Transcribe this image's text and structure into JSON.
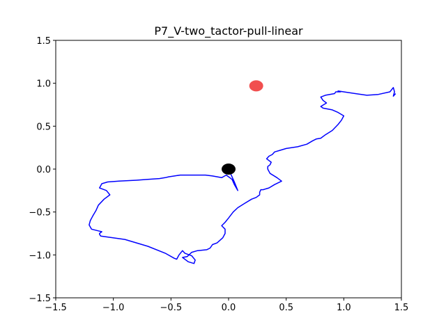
{
  "chart_data": {
    "type": "line",
    "title": "P7_V-two_tactor-pull-linear",
    "xlabel": "",
    "ylabel": "",
    "xlim": [
      -1.5,
      1.5
    ],
    "ylim": [
      -1.5,
      1.5
    ],
    "x_ticks": [
      "−1.5",
      "−1.0",
      "−0.5",
      "0.0",
      "0.5",
      "1.0",
      "1.5"
    ],
    "y_ticks": [
      "−1.5",
      "−1.0",
      "−0.5",
      "0.0",
      "0.5",
      "1.0",
      "1.5"
    ],
    "grid": false,
    "colors": {
      "path": "#0000ff",
      "target": "#f03c3c",
      "start": "#000000"
    },
    "markers": [
      {
        "name": "target",
        "x": 0.24,
        "y": 0.97,
        "color": "#f03c3c"
      },
      {
        "name": "start",
        "x": 0.0,
        "y": 0.0,
        "color": "#000000"
      }
    ],
    "series": [
      {
        "x": [
          0.0,
          0.05,
          0.08,
          0.05,
          0.03,
          -0.02,
          -0.06,
          -0.14,
          -0.2,
          -0.24,
          -0.28,
          -0.32,
          -0.42,
          -0.47,
          -0.52,
          -0.55,
          -0.6,
          -0.7,
          -0.8,
          -0.95,
          -1.05,
          -1.1,
          -1.12,
          -1.06,
          -1.03,
          -1.08,
          -1.13,
          -1.15,
          -1.18,
          -1.2,
          -1.21,
          -1.19,
          -1.13,
          -1.1,
          -1.12,
          -1.12,
          -1.11,
          -0.9,
          -0.7,
          -0.55,
          -0.47,
          -0.45,
          -0.43,
          -0.4,
          -0.38,
          -0.32,
          -0.29,
          -0.3,
          -0.35,
          -0.4,
          -0.36,
          -0.32,
          -0.27,
          -0.19,
          -0.16,
          -0.14,
          -0.1,
          -0.05,
          -0.03,
          -0.03,
          -0.06,
          -0.03,
          0.0,
          0.04,
          0.08,
          0.14,
          0.2,
          0.24,
          0.27,
          0.27,
          0.28,
          0.3,
          0.35,
          0.4,
          0.46,
          0.42,
          0.36,
          0.34,
          0.34,
          0.36,
          0.37,
          0.33,
          0.35,
          0.38,
          0.4,
          0.45,
          0.5,
          0.6,
          0.68,
          0.73,
          0.76,
          0.8,
          0.84,
          0.9,
          0.95,
          0.98,
          1.0,
          0.95,
          0.9,
          0.82,
          0.8,
          0.85,
          0.82,
          0.8,
          0.84,
          0.92,
          0.93,
          0.97,
          0.95,
          1.0,
          1.1,
          1.2,
          1.3,
          1.4,
          1.43,
          1.44,
          1.43,
          1.45
        ],
        "y": [
          0.0,
          -0.15,
          -0.25,
          -0.18,
          -0.12,
          -0.07,
          -0.1,
          -0.08,
          -0.07,
          -0.07,
          -0.07,
          -0.07,
          -0.07,
          -0.08,
          -0.09,
          -0.1,
          -0.11,
          -0.12,
          -0.13,
          -0.14,
          -0.15,
          -0.17,
          -0.22,
          -0.25,
          -0.3,
          -0.35,
          -0.42,
          -0.48,
          -0.55,
          -0.6,
          -0.65,
          -0.7,
          -0.72,
          -0.73,
          -0.75,
          -0.76,
          -0.78,
          -0.82,
          -0.9,
          -0.98,
          -1.04,
          -1.05,
          -1.0,
          -0.95,
          -0.98,
          -1.01,
          -1.06,
          -1.1,
          -1.08,
          -1.03,
          -1.02,
          -0.97,
          -0.95,
          -0.94,
          -0.92,
          -0.88,
          -0.86,
          -0.8,
          -0.75,
          -0.7,
          -0.66,
          -0.62,
          -0.57,
          -0.5,
          -0.45,
          -0.4,
          -0.35,
          -0.33,
          -0.3,
          -0.27,
          -0.24,
          -0.24,
          -0.22,
          -0.18,
          -0.14,
          -0.1,
          -0.05,
          0.0,
          0.03,
          0.05,
          0.08,
          0.12,
          0.15,
          0.17,
          0.2,
          0.22,
          0.24,
          0.26,
          0.29,
          0.33,
          0.35,
          0.36,
          0.4,
          0.45,
          0.52,
          0.57,
          0.62,
          0.66,
          0.69,
          0.71,
          0.73,
          0.77,
          0.8,
          0.84,
          0.86,
          0.88,
          0.9,
          0.9,
          0.91,
          0.9,
          0.88,
          0.86,
          0.87,
          0.9,
          0.95,
          0.9,
          0.85,
          0.88
        ]
      }
    ]
  }
}
